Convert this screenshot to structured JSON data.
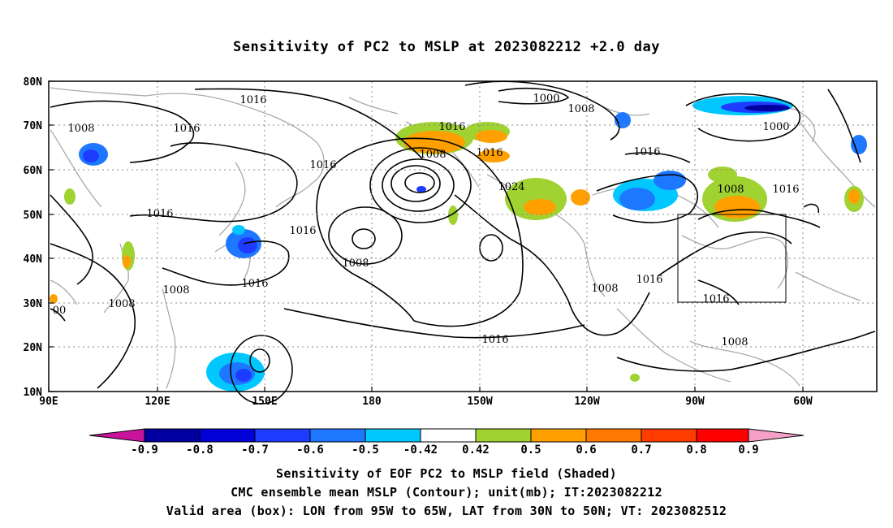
{
  "title": "Sensitivity of PC2 to MSLP at 2023082212 +2.0 day",
  "lat_labels": [
    "80N",
    "70N",
    "60N",
    "50N",
    "40N",
    "30N",
    "20N",
    "10N"
  ],
  "lon_labels": [
    "90E",
    "120E",
    "150E",
    "180",
    "150W",
    "120W",
    "90W",
    "60W"
  ],
  "contours": {
    "labels": [
      {
        "text": "1016"
      },
      {
        "text": "1008"
      },
      {
        "text": "1016"
      },
      {
        "text": "1000"
      },
      {
        "text": "1008"
      },
      {
        "text": "1016"
      },
      {
        "text": "1000"
      },
      {
        "text": "1016"
      },
      {
        "text": "1008"
      },
      {
        "text": "1016"
      },
      {
        "text": "1016"
      },
      {
        "text": "1024"
      },
      {
        "text": "1016"
      },
      {
        "text": "1016"
      },
      {
        "text": "1008"
      },
      {
        "text": "1016"
      },
      {
        "text": "1016"
      },
      {
        "text": "1008"
      },
      {
        "text": "1008"
      },
      {
        "text": "1008"
      },
      {
        "text": "1016"
      },
      {
        "text": "1008"
      },
      {
        "text": "1016"
      },
      {
        "text": "1016"
      },
      {
        "text": "1008"
      },
      {
        "text": "00"
      }
    ]
  },
  "colorbar": {
    "labels": [
      "-0.9",
      "-0.8",
      "-0.7",
      "-0.6",
      "-0.5",
      "-0.42",
      "0.42",
      "0.5",
      "0.6",
      "0.7",
      "0.8",
      "0.9"
    ],
    "colors": [
      "#c8149b",
      "#0000a0",
      "#0000d7",
      "#1e3cff",
      "#1e78ff",
      "#00c8ff",
      "#ffffff",
      "#a0d232",
      "#ffa000",
      "#ff7800",
      "#ff3c00",
      "#ff0000",
      "#f5a0c8"
    ]
  },
  "valid_box": {
    "lon_from": "95W",
    "lon_to": "65W",
    "lat_from": "30N",
    "lat_to": "50N"
  },
  "footer": {
    "line1": "Sensitivity of EOF PC2 to MSLP field (Shaded)",
    "line2": "CMC ensemble mean MSLP (Contour); unit(mb); IT:2023082212",
    "line3": "Valid area (box): LON from 95W to 65W, LAT from 30N to 50N; VT: 2023082512"
  }
}
